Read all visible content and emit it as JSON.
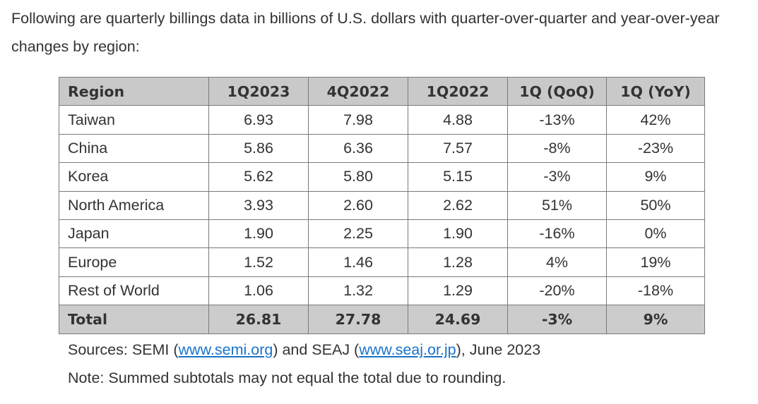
{
  "intro_text": "Following are quarterly billings data in billions of U.S. dollars with quarter-over-quarter and year-over-year changes by region:",
  "table": {
    "headers": [
      "Region",
      "1Q2023",
      "4Q2022",
      "1Q2022",
      "1Q (QoQ)",
      "1Q (YoY)"
    ],
    "rows": [
      [
        "Taiwan",
        "6.93",
        "7.98",
        "4.88",
        "-13%",
        "42%"
      ],
      [
        "China",
        "5.86",
        "6.36",
        "7.57",
        "-8%",
        "-23%"
      ],
      [
        "Korea",
        "5.62",
        "5.80",
        "5.15",
        "-3%",
        "9%"
      ],
      [
        "North America",
        "3.93",
        "2.60",
        "2.62",
        "51%",
        "50%"
      ],
      [
        "Japan",
        "1.90",
        "2.25",
        "1.90",
        "-16%",
        "0%"
      ],
      [
        "Europe",
        "1.52",
        "1.46",
        "1.28",
        "4%",
        "19%"
      ],
      [
        "Rest of World",
        "1.06",
        "1.32",
        "1.29",
        "-20%",
        "-18%"
      ]
    ],
    "total": [
      "Total",
      "26.81",
      "27.78",
      "24.69",
      "-3%",
      "9%"
    ]
  },
  "sources": {
    "prefix": "Sources: SEMI (",
    "semi_link": "www.semi.org",
    "middle": ") and SEAJ (",
    "seaj_link": "www.seaj.or.jp",
    "suffix": "), June 2023"
  },
  "note_text": "Note: Summed subtotals may not equal the total due to rounding.",
  "colors": {
    "header_bg": "#c9c9c9",
    "total_bg": "#cccccc",
    "border": "#7a7a7a",
    "link": "#1a73c9",
    "text": "#333333"
  }
}
